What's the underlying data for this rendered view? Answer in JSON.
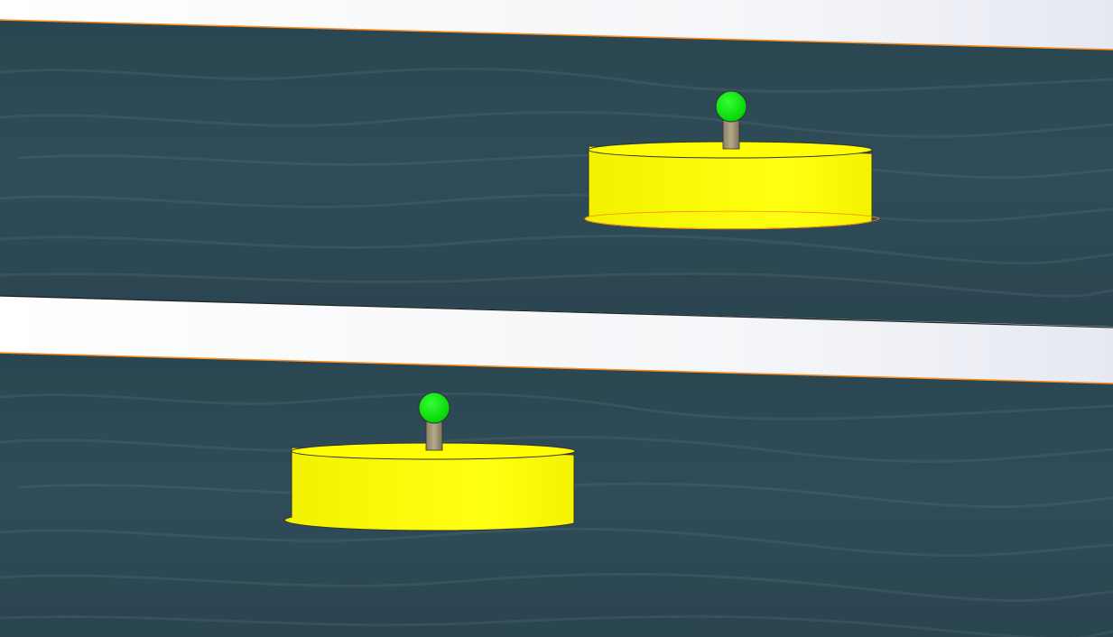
{
  "viewport": {
    "background_color": "#ffffff",
    "sky_tint": "#e6e9f2"
  },
  "water": {
    "color": "#2d4a56",
    "highlight": "#6f8b92",
    "edge_color": "#ff8c1a"
  },
  "panels": [
    {
      "name": "upper-water-panel",
      "buoy": {
        "body_color": "#ffff00",
        "body_shade": "#f0f000",
        "rim_color": "#ff8c1a",
        "mast_color": "#a89c7e",
        "light_color": "#00e600",
        "light_icon": "green-sphere-icon"
      }
    },
    {
      "name": "lower-water-panel",
      "buoy": {
        "body_color": "#ffff00",
        "body_shade": "#f0f000",
        "rim_color": "#ff8c1a",
        "mast_color": "#a89c7e",
        "light_color": "#00e600",
        "light_icon": "green-sphere-icon"
      }
    }
  ]
}
